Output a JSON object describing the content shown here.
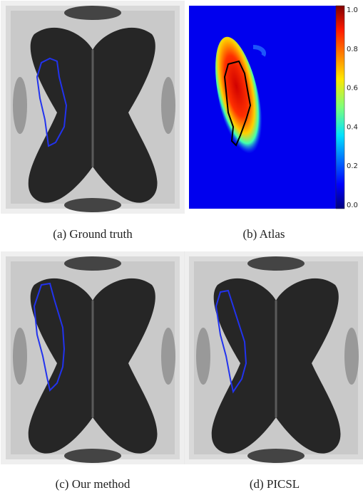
{
  "panels": [
    {
      "caption": "(a) Ground truth"
    },
    {
      "caption": "(b) Atlas",
      "colorbar_ticks": [
        "1.0",
        "0.8",
        "0.6",
        "0.4",
        "0.2",
        "0.0"
      ]
    },
    {
      "caption": "(c) Our method"
    },
    {
      "caption": "(d) PICSL"
    }
  ]
}
